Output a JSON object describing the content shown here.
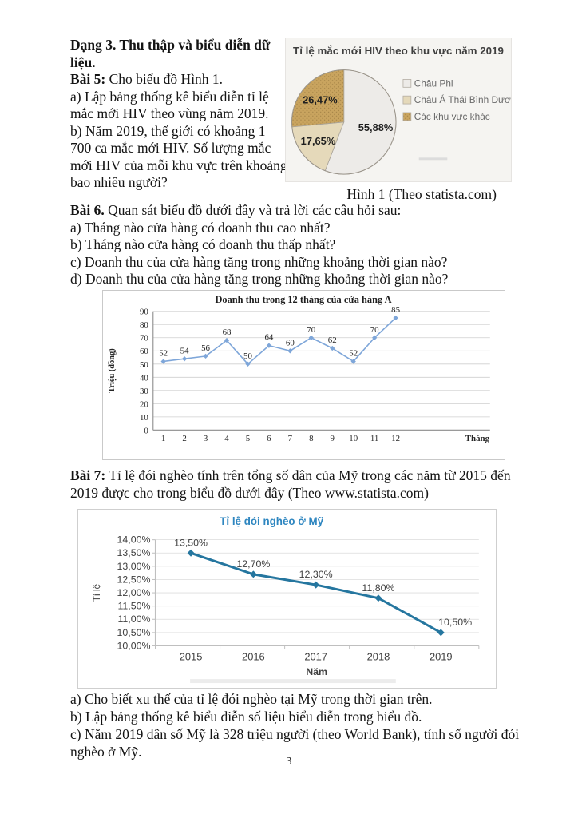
{
  "page_number": "3",
  "dang3": {
    "heading": "Dạng 3. Thu thập và biểu diễn dữ liệu."
  },
  "bai5": {
    "label": "Bài 5:",
    "intro": " Cho biểu đồ Hình 1.",
    "qa": "a) Lập bảng thống kê biểu diễn tỉ lệ mắc mới HIV theo vùng năm 2019.",
    "qb": "b) Năm 2019, thế giới có khoảng 1 700 ca mắc mới HIV. Số lượng mắc mới HIV của mỗi khu vực trên khoảng bao nhiêu người?",
    "figure_caption": "Hình 1 (Theo statista.com)"
  },
  "bai6": {
    "label": "Bài 6.",
    "intro": " Quan sát biểu đồ dưới đây và trả lời các câu hỏi sau:",
    "qa": "a) Tháng nào cửa hàng có doanh thu cao nhất?",
    "qb": "b) Tháng nào cửa hàng có doanh thu thấp nhất?",
    "qc": "c) Doanh thu của cửa hàng tăng trong những khoảng thời gian nào?",
    "qd": "d) Doanh thu của cửa hàng tăng trong những khoảng thời gian nào?"
  },
  "bai7": {
    "label": "Bài 7:",
    "intro": " Tỉ lệ đói nghèo tính trên tổng số dân của Mỹ trong các năm từ 2015 đến 2019 được cho trong biểu đồ dưới đây (Theo www.statista.com)",
    "qa": "a) Cho biết xu thế của tỉ lệ đói nghèo tại Mỹ trong thời gian trên.",
    "qb": "b) Lập bảng thống kê biểu diễn số liệu biểu diễn trong biểu đồ.",
    "qc": "c) Năm 2019 dân số Mỹ là 328 triệu người (theo World Bank), tính số người đói nghèo ở Mỹ."
  },
  "chart_data": [
    {
      "id": "hiv-pie",
      "type": "pie",
      "title": "Tỉ lệ mắc mới HIV theo khu vực năm 2019",
      "labels": [
        "Châu Phi",
        "Châu Á Thái Bình Dương",
        "Các khu vực khác"
      ],
      "values": [
        55.88,
        17.65,
        26.47
      ],
      "value_labels": [
        "55,88%",
        "17,65%",
        "26,47%"
      ],
      "colors": [
        "#edebe8",
        "#e5d9ba",
        "#c9a45f"
      ],
      "textured_slice": 2,
      "legend_position": "right",
      "title_color": "#3f3f3f"
    },
    {
      "id": "revenue-line",
      "type": "line",
      "title": "Doanh thu trong 12 tháng của cửa hàng A",
      "x": [
        "1",
        "2",
        "3",
        "4",
        "5",
        "6",
        "7",
        "8",
        "9",
        "10",
        "11",
        "12"
      ],
      "values": [
        52,
        54,
        56,
        68,
        50,
        64,
        60,
        70,
        62,
        52,
        70,
        85
      ],
      "xlabel": "Tháng",
      "ylabel": "Triệu (đồng)",
      "ylim": [
        0,
        90
      ],
      "ytick_step": 10,
      "ytick_labels": [
        "0",
        "10",
        "20",
        "30",
        "40",
        "50",
        "60",
        "70",
        "80",
        "90"
      ],
      "grid": true,
      "line_color": "#7ea6d9"
    },
    {
      "id": "poverty-line",
      "type": "line",
      "title": "Tỉ lệ đói nghèo ở Mỹ",
      "x": [
        "2015",
        "2016",
        "2017",
        "2018",
        "2019"
      ],
      "values": [
        13.5,
        12.7,
        12.3,
        11.8,
        10.5
      ],
      "value_labels": [
        "13,50%",
        "12,70%",
        "12,30%",
        "11,80%",
        "10,50%"
      ],
      "xlabel": "Năm",
      "ylabel": "Tỉ lệ",
      "ylim": [
        10,
        14
      ],
      "ytick_step": 0.5,
      "ytick_labels": [
        "10,00%",
        "10,50%",
        "11,00%",
        "11,50%",
        "12,00%",
        "12,50%",
        "13,00%",
        "13,50%",
        "14,00%"
      ],
      "grid": true,
      "line_color": "#25769f",
      "title_color": "#2e86c0"
    }
  ]
}
